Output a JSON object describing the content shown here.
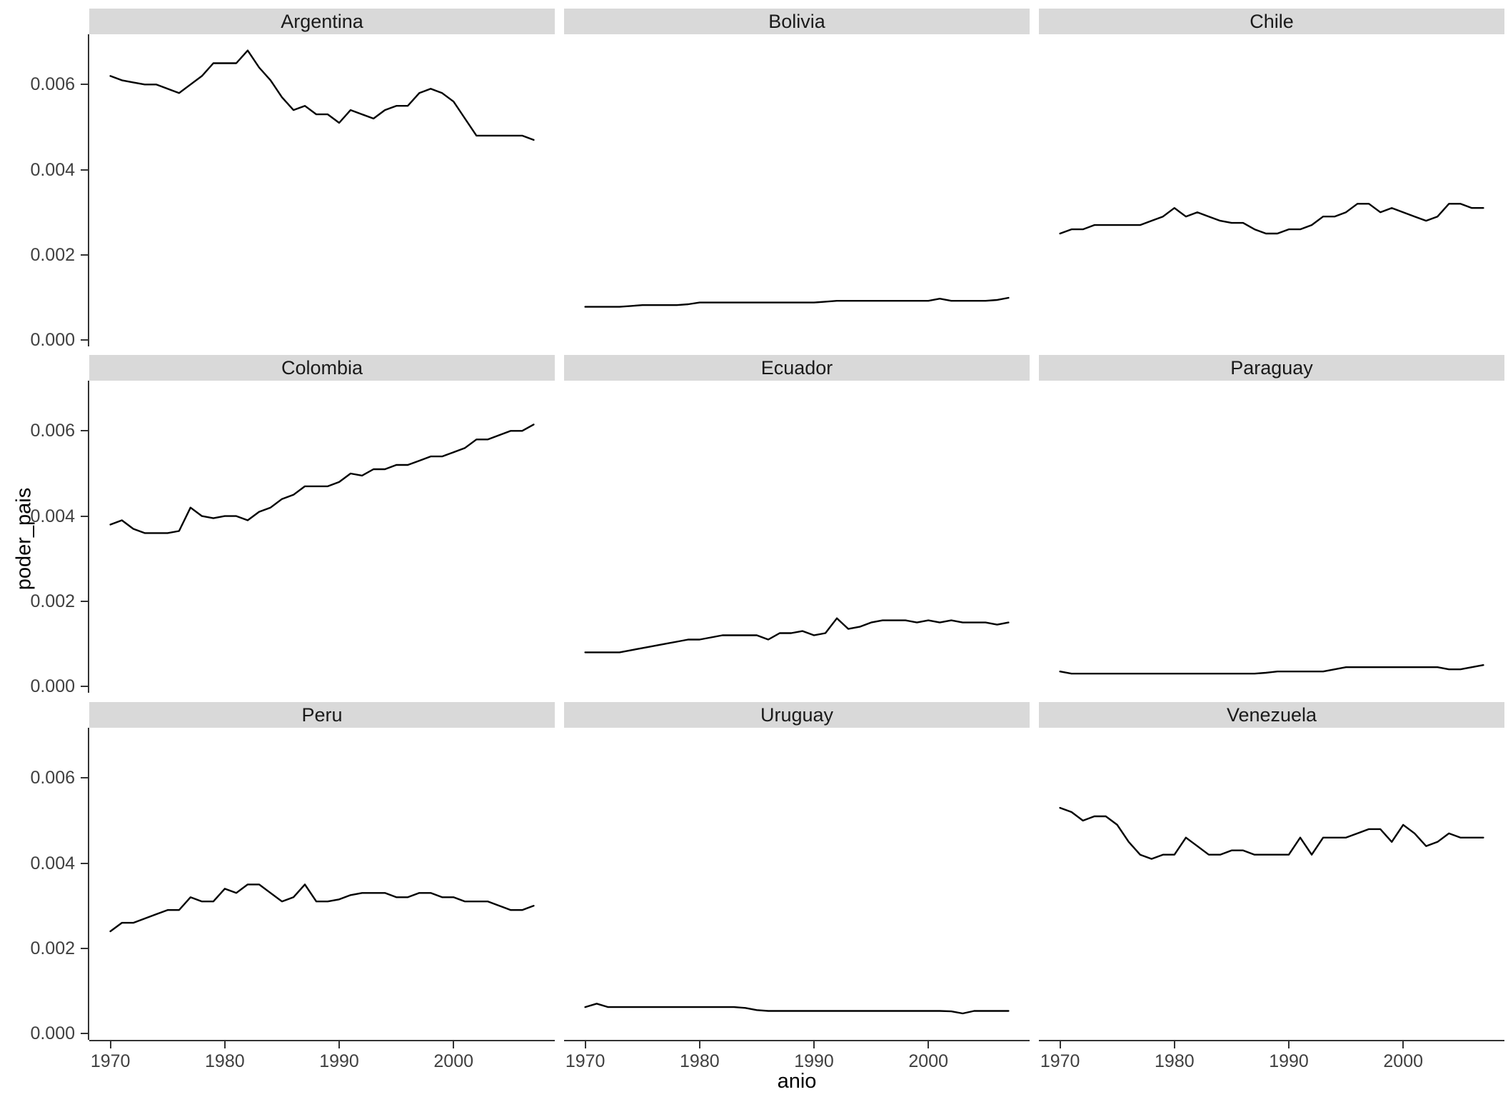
{
  "figure": {
    "background": "#ffffff",
    "line_color": "#000000",
    "strip_fill": "#d9d9d9",
    "axis_color": "#333333",
    "tick_text_color": "#404040"
  },
  "chart_data": {
    "type": "line",
    "title": "",
    "xlabel": "anio",
    "ylabel": "poder_pais",
    "grid": false,
    "legend": "none",
    "facet_layout": {
      "ncol": 3,
      "nrow": 3
    },
    "xlim": [
      1968.15,
      2008.85
    ],
    "ylim": [
      -0.00015,
      0.00718
    ],
    "x_ticks": [
      1970,
      1980,
      1990,
      2000
    ],
    "x_tick_labels": [
      "1970",
      "1980",
      "1990",
      "2000"
    ],
    "y_ticks": [
      0,
      0.002,
      0.004,
      0.006
    ],
    "y_tick_labels": [
      "0.000",
      "0.002",
      "0.004",
      "0.006"
    ],
    "x": [
      1970,
      1971,
      1972,
      1973,
      1974,
      1975,
      1976,
      1977,
      1978,
      1979,
      1980,
      1981,
      1982,
      1983,
      1984,
      1985,
      1986,
      1987,
      1988,
      1989,
      1990,
      1991,
      1992,
      1993,
      1994,
      1995,
      1996,
      1997,
      1998,
      1999,
      2000,
      2001,
      2002,
      2003,
      2004,
      2005,
      2006,
      2007
    ],
    "facets": [
      {
        "label": "Argentina",
        "values": [
          0.0062,
          0.0061,
          0.00605,
          0.006,
          0.006,
          0.0059,
          0.0058,
          0.006,
          0.0062,
          0.0065,
          0.0065,
          0.0065,
          0.0068,
          0.0064,
          0.0061,
          0.0057,
          0.0054,
          0.0055,
          0.0053,
          0.0053,
          0.0051,
          0.0054,
          0.0053,
          0.0052,
          0.0054,
          0.0055,
          0.0055,
          0.0058,
          0.0059,
          0.0058,
          0.0056,
          0.0052,
          0.0048,
          0.0048,
          0.0048,
          0.0048,
          0.0048,
          0.0047
        ]
      },
      {
        "label": "Bolivia",
        "values": [
          0.00078,
          0.00078,
          0.00078,
          0.00078,
          0.0008,
          0.00082,
          0.00082,
          0.00082,
          0.00082,
          0.00084,
          0.00088,
          0.00088,
          0.00088,
          0.00088,
          0.00088,
          0.00088,
          0.00088,
          0.00088,
          0.00088,
          0.00088,
          0.00088,
          0.0009,
          0.00092,
          0.00092,
          0.00092,
          0.00092,
          0.00092,
          0.00092,
          0.00092,
          0.00092,
          0.00092,
          0.00097,
          0.00092,
          0.00092,
          0.00092,
          0.00092,
          0.00094,
          0.00099
        ]
      },
      {
        "label": "Chile",
        "values": [
          0.0025,
          0.0026,
          0.0026,
          0.0027,
          0.0027,
          0.0027,
          0.0027,
          0.0027,
          0.0028,
          0.0029,
          0.0031,
          0.0029,
          0.003,
          0.0029,
          0.0028,
          0.00275,
          0.00275,
          0.0026,
          0.0025,
          0.0025,
          0.0026,
          0.0026,
          0.0027,
          0.0029,
          0.0029,
          0.003,
          0.0032,
          0.0032,
          0.003,
          0.0031,
          0.003,
          0.0029,
          0.0028,
          0.0029,
          0.0032,
          0.0032,
          0.0031,
          0.0031
        ]
      },
      {
        "label": "Colombia",
        "values": [
          0.0038,
          0.0039,
          0.0037,
          0.0036,
          0.0036,
          0.0036,
          0.00365,
          0.0042,
          0.004,
          0.00395,
          0.004,
          0.004,
          0.0039,
          0.0041,
          0.0042,
          0.0044,
          0.0045,
          0.0047,
          0.0047,
          0.0047,
          0.0048,
          0.005,
          0.00495,
          0.0051,
          0.0051,
          0.0052,
          0.0052,
          0.0053,
          0.0054,
          0.0054,
          0.0055,
          0.0056,
          0.0058,
          0.0058,
          0.0059,
          0.006,
          0.006,
          0.00615
        ]
      },
      {
        "label": "Ecuador",
        "values": [
          0.0008,
          0.0008,
          0.0008,
          0.0008,
          0.00085,
          0.0009,
          0.00095,
          0.001,
          0.00105,
          0.0011,
          0.0011,
          0.00115,
          0.0012,
          0.0012,
          0.0012,
          0.0012,
          0.0011,
          0.00125,
          0.00125,
          0.0013,
          0.0012,
          0.00125,
          0.0016,
          0.00135,
          0.0014,
          0.0015,
          0.00155,
          0.00155,
          0.00155,
          0.0015,
          0.00155,
          0.0015,
          0.00155,
          0.0015,
          0.0015,
          0.0015,
          0.00145,
          0.0015
        ]
      },
      {
        "label": "Paraguay",
        "values": [
          0.00035,
          0.0003,
          0.0003,
          0.0003,
          0.0003,
          0.0003,
          0.0003,
          0.0003,
          0.0003,
          0.0003,
          0.0003,
          0.0003,
          0.0003,
          0.0003,
          0.0003,
          0.0003,
          0.0003,
          0.0003,
          0.00032,
          0.00035,
          0.00035,
          0.00035,
          0.00035,
          0.00035,
          0.0004,
          0.00045,
          0.00045,
          0.00045,
          0.00045,
          0.00045,
          0.00045,
          0.00045,
          0.00045,
          0.00045,
          0.0004,
          0.0004,
          0.00045,
          0.0005
        ]
      },
      {
        "label": "Peru",
        "values": [
          0.0024,
          0.0026,
          0.0026,
          0.0027,
          0.0028,
          0.0029,
          0.0029,
          0.0032,
          0.0031,
          0.0031,
          0.0034,
          0.0033,
          0.0035,
          0.0035,
          0.0033,
          0.0031,
          0.0032,
          0.0035,
          0.0031,
          0.0031,
          0.00315,
          0.00325,
          0.0033,
          0.0033,
          0.0033,
          0.0032,
          0.0032,
          0.0033,
          0.0033,
          0.0032,
          0.0032,
          0.0031,
          0.0031,
          0.0031,
          0.003,
          0.0029,
          0.0029,
          0.003
        ]
      },
      {
        "label": "Uruguay",
        "values": [
          0.00062,
          0.0007,
          0.00062,
          0.00062,
          0.00062,
          0.00062,
          0.00062,
          0.00062,
          0.00062,
          0.00062,
          0.00062,
          0.00062,
          0.00062,
          0.00062,
          0.0006,
          0.00055,
          0.00053,
          0.00053,
          0.00053,
          0.00053,
          0.00053,
          0.00053,
          0.00053,
          0.00053,
          0.00053,
          0.00053,
          0.00053,
          0.00053,
          0.00053,
          0.00053,
          0.00053,
          0.00053,
          0.00052,
          0.00047,
          0.00053,
          0.00053,
          0.00053,
          0.00053
        ]
      },
      {
        "label": "Venezuela",
        "values": [
          0.0053,
          0.0052,
          0.005,
          0.0051,
          0.0051,
          0.0049,
          0.0045,
          0.0042,
          0.0041,
          0.0042,
          0.0042,
          0.0046,
          0.0044,
          0.0042,
          0.0042,
          0.0043,
          0.0043,
          0.0042,
          0.0042,
          0.0042,
          0.0042,
          0.0046,
          0.0042,
          0.0046,
          0.0046,
          0.0046,
          0.0047,
          0.0048,
          0.0048,
          0.0045,
          0.0049,
          0.0047,
          0.0044,
          0.0045,
          0.0047,
          0.0046,
          0.0046,
          0.0046
        ]
      }
    ]
  }
}
